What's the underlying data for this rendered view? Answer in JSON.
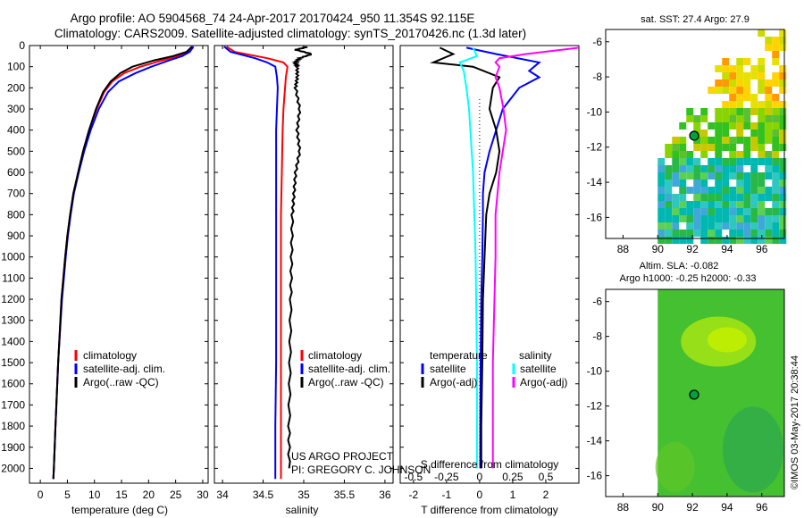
{
  "header": {
    "title_line1": "Argo profile: AO 5904568_74 24-Apr-2017 20170424_950 11.354S 92.115E",
    "title_line2": "Climatology: CARS2009. Satellite-adjusted climatology: synTS_20170426.nc (1.3d later)"
  },
  "colors": {
    "climatology": "#ff0000",
    "satellite": "#0000ff",
    "argo": "#000000",
    "sat_salinity": "#00ffff",
    "argo_salinity": "#ff00ff"
  },
  "depth_ticks": [
    "0",
    "100",
    "200",
    "300",
    "400",
    "500",
    "600",
    "700",
    "800",
    "900",
    "1000",
    "1100",
    "1200",
    "1300",
    "1400",
    "1500",
    "1600",
    "1700",
    "1800",
    "1900",
    "2000"
  ],
  "chart_data": [
    {
      "type": "line",
      "name": "temperature-profile",
      "xlabel": "temperature (deg C)",
      "ylabel": "",
      "xlim": [
        -2,
        31
      ],
      "ylim": [
        2070,
        0
      ],
      "x_ticks": [
        "0",
        "5",
        "10",
        "15",
        "20",
        "25",
        "30"
      ],
      "legend": [
        "climatology",
        "satellite-adj. clim.",
        "Argo(..raw -QC)"
      ],
      "legend_placement": "lower-center",
      "series": [
        {
          "name": "climatology",
          "color": "#ff0000",
          "depth": [
            5,
            30,
            50,
            70,
            100,
            130,
            170,
            220,
            300,
            400,
            500,
            600,
            700,
            800,
            900,
            1000,
            1200,
            1500,
            1800,
            2000,
            2050
          ],
          "values": [
            28.2,
            27.3,
            25.5,
            22.5,
            18.5,
            15.5,
            13.3,
            11.8,
            10.4,
            9.0,
            7.9,
            7.0,
            6.1,
            5.5,
            5.0,
            4.6,
            3.9,
            3.3,
            2.8,
            2.5,
            2.4
          ]
        },
        {
          "name": "satellite-adj. clim.",
          "color": "#0000ff",
          "depth": [
            5,
            30,
            50,
            70,
            100,
            130,
            170,
            220,
            300,
            400,
            500,
            600,
            700,
            800,
            900,
            1000,
            1200,
            1500,
            1800,
            2000,
            2050
          ],
          "values": [
            28.3,
            27.6,
            26.2,
            23.8,
            20.5,
            17.6,
            14.5,
            12.5,
            10.8,
            9.3,
            8.1,
            7.1,
            6.2,
            5.6,
            5.1,
            4.7,
            4.0,
            3.3,
            2.8,
            2.5,
            2.4
          ]
        },
        {
          "name": "Argo(..raw -QC)",
          "color": "#000000",
          "depth": [
            5,
            30,
            50,
            70,
            100,
            130,
            170,
            220,
            300,
            400,
            500,
            600,
            700,
            800,
            900,
            1000,
            1200,
            1500,
            1800,
            2000,
            2050
          ],
          "values": [
            28.0,
            27.0,
            24.5,
            21.0,
            17.0,
            14.8,
            13.0,
            11.6,
            10.3,
            9.0,
            7.9,
            7.0,
            6.1,
            5.5,
            5.0,
            4.6,
            3.9,
            3.3,
            2.8,
            2.5,
            2.4
          ]
        }
      ]
    },
    {
      "type": "line",
      "name": "salinity-profile",
      "xlabel": "salinity",
      "xlim": [
        33.9,
        36.1
      ],
      "ylim": [
        2070,
        0
      ],
      "x_ticks": [
        "34",
        "34.5",
        "35",
        "35.5",
        "36"
      ],
      "legend": [
        "climatology",
        "satellite-adj. clim.",
        "Argo(..raw -QC)"
      ],
      "legend_placement": "lower-center",
      "annotations": [
        "US ARGO PROJECT",
        "PI: GREGORY C. JOHNSON"
      ],
      "series": [
        {
          "name": "climatology",
          "color": "#ff0000",
          "depth": [
            5,
            30,
            60,
            80,
            100,
            150,
            200,
            300,
            400,
            600,
            800,
            1000,
            1200,
            1500,
            1800,
            2000,
            2050
          ],
          "values": [
            34.05,
            34.15,
            34.55,
            34.75,
            34.8,
            34.78,
            34.77,
            34.75,
            34.74,
            34.73,
            34.72,
            34.72,
            34.72,
            34.72,
            34.72,
            34.72,
            34.72
          ]
        },
        {
          "name": "satellite-adj. clim.",
          "color": "#0000ff",
          "depth": [
            5,
            30,
            60,
            80,
            100,
            150,
            200,
            300,
            400,
            600,
            800,
            1000,
            1200,
            1500,
            1800,
            2000,
            2050
          ],
          "values": [
            34.02,
            34.1,
            34.4,
            34.55,
            34.65,
            34.67,
            34.68,
            34.67,
            34.66,
            34.66,
            34.66,
            34.66,
            34.66,
            34.66,
            34.65,
            34.65,
            34.65
          ]
        },
        {
          "name": "Argo(..raw -QC)",
          "color": "#000000",
          "depth": [
            5,
            20,
            40,
            60,
            80,
            100,
            150,
            200,
            300,
            400,
            500,
            600,
            700,
            800,
            1000,
            1200,
            1500,
            1800,
            2000
          ],
          "values": [
            35.05,
            34.9,
            35.1,
            34.95,
            34.9,
            34.92,
            34.92,
            34.9,
            34.95,
            34.92,
            34.95,
            34.9,
            34.88,
            34.86,
            34.85,
            34.84,
            34.83,
            34.82,
            34.82
          ]
        }
      ]
    },
    {
      "type": "line",
      "name": "difference-profile",
      "xlabel": "T difference from climatology",
      "xlabel_top": "S difference from climatology",
      "xlim_T": [
        -2.4,
        3.0
      ],
      "xlim_S": [
        -0.6,
        0.75
      ],
      "ylim": [
        2070,
        0
      ],
      "x_ticks_T": [
        "-2",
        "-1",
        "0",
        "1",
        "2"
      ],
      "x_ticks_S": [
        "-0.5",
        "-0.25",
        "0",
        "0.25",
        "0.5"
      ],
      "legend_temperature_title": "temperature",
      "legend_salinity_title": "salinity",
      "legend": [
        "satellite",
        "Argo(-adj)",
        "satellite",
        "Argo(-adj)"
      ],
      "series": [
        {
          "name": "temperature satellite",
          "color": "#0000ff",
          "depth": [
            10,
            40,
            80,
            120,
            150,
            200,
            300,
            400,
            500,
            600,
            700,
            800,
            1000,
            1200,
            1500,
            1800,
            2000
          ],
          "values": [
            -0.4,
            0.5,
            1.8,
            1.5,
            1.8,
            1.2,
            0.7,
            0.5,
            0.3,
            0.15,
            0.1,
            0.1,
            0.08,
            0.05,
            0.03,
            0.02,
            0.02
          ]
        },
        {
          "name": "temperature Argo(-adj)",
          "color": "#000000",
          "depth": [
            10,
            40,
            80,
            100,
            150,
            200,
            300,
            400,
            500,
            600,
            700,
            800,
            1000,
            1200,
            1500,
            1800,
            2000
          ],
          "values": [
            -1.2,
            -0.8,
            -1.4,
            -0.2,
            0.6,
            0.4,
            0.3,
            0.5,
            0.6,
            0.5,
            0.3,
            0.2,
            0.15,
            0.1,
            0.08,
            0.05,
            0.05
          ]
        },
        {
          "name": "salinity satellite",
          "color": "#00ffff",
          "depth": [
            10,
            50,
            80,
            120,
            200,
            300,
            400,
            600,
            800,
            1000,
            1500,
            2000
          ],
          "values": [
            -0.05,
            -0.02,
            -0.15,
            -0.12,
            -0.1,
            -0.08,
            -0.07,
            -0.05,
            -0.04,
            -0.03,
            -0.02,
            -0.02
          ]
        },
        {
          "name": "salinity Argo(-adj)",
          "color": "#ff00ff",
          "depth": [
            10,
            40,
            60,
            80,
            100,
            150,
            200,
            300,
            400,
            600,
            800,
            1000,
            1500,
            2000
          ],
          "values": [
            0.75,
            0.35,
            0.15,
            0.12,
            0.15,
            0.12,
            0.15,
            0.18,
            0.2,
            0.15,
            0.12,
            0.12,
            0.1,
            0.1
          ]
        }
      ]
    },
    {
      "type": "heatmap",
      "name": "sst-map",
      "title": "sat. SST: 27.4  Argo: 27.9",
      "x_ticks": [
        "88",
        "90",
        "92",
        "94",
        "96"
      ],
      "y_ticks": [
        "-6",
        "-8",
        "-10",
        "-12",
        "-14",
        "-16"
      ],
      "xlim": [
        87,
        97.3
      ],
      "ylim": [
        -17.2,
        -5.3
      ],
      "marker": {
        "lon": 92.1,
        "lat": -11.35
      }
    },
    {
      "type": "heatmap",
      "name": "sla-map",
      "title_line1": "Altim. SLA: -0.082",
      "title_line2": "Argo h1000: -0.25 h2000: -0.33",
      "x_ticks": [
        "88",
        "90",
        "92",
        "94",
        "96"
      ],
      "y_ticks": [
        "-6",
        "-8",
        "-10",
        "-12",
        "-14",
        "-16"
      ],
      "xlim": [
        87,
        97.3
      ],
      "ylim": [
        -17.2,
        -5.3
      ],
      "marker": {
        "lon": 92.1,
        "lat": -11.35
      }
    }
  ],
  "footer": {
    "vertical_stamp": "©IMOS 03-May-2017 20:38:44"
  }
}
